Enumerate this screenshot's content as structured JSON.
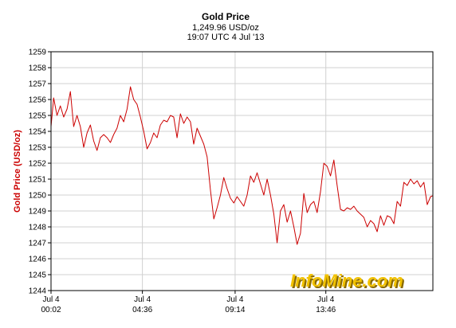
{
  "chart_data": {
    "type": "line",
    "title": "Gold Price",
    "subtitle_price": "1,249.96 USD/oz",
    "subtitle_time": "19:07 UTC 4 Jul '13",
    "ylabel": "Gold Price (USD/oz)",
    "xlabel": "",
    "ylim": [
      1244,
      1259
    ],
    "yticks": [
      1244,
      1245,
      1246,
      1247,
      1248,
      1249,
      1250,
      1251,
      1252,
      1253,
      1254,
      1255,
      1256,
      1257,
      1258,
      1259
    ],
    "xtick_labels": [
      {
        "line1": "Jul 4",
        "line2": "00:02",
        "minutes": 2
      },
      {
        "line1": "Jul 4",
        "line2": "04:36",
        "minutes": 276
      },
      {
        "line1": "Jul 4",
        "line2": "09:14",
        "minutes": 554
      },
      {
        "line1": "Jul 4",
        "line2": "13:46",
        "minutes": 826
      }
    ],
    "xlim_minutes": [
      2,
      1147
    ],
    "grid": true,
    "line_color": "#cc0000",
    "series": [
      {
        "x": [
          2,
          10,
          20,
          30,
          40,
          50,
          60,
          70,
          80,
          90,
          100,
          110,
          120,
          130,
          140,
          150,
          160,
          170,
          180,
          190,
          200,
          210,
          220,
          230,
          240,
          250,
          260,
          270,
          280,
          290,
          300,
          310,
          320,
          330,
          340,
          350,
          360,
          370,
          380,
          390,
          400,
          410,
          420,
          430,
          440,
          450,
          460,
          470,
          480,
          490,
          500,
          510,
          520,
          530,
          540,
          550,
          560,
          570,
          580,
          590,
          600,
          610,
          620,
          630,
          640,
          650,
          660,
          670,
          680,
          690,
          700,
          710,
          720,
          730,
          740,
          750,
          760,
          770,
          780,
          790,
          800,
          810,
          820,
          830,
          840,
          850,
          860,
          870,
          880,
          890,
          900,
          910,
          920,
          930,
          940,
          950,
          960,
          970,
          980,
          990,
          1000,
          1010,
          1020,
          1030,
          1040,
          1050,
          1060,
          1070,
          1080,
          1090,
          1100,
          1110,
          1120,
          1130,
          1140,
          1147
        ],
        "y": [
          1254.3,
          1256.1,
          1255.0,
          1255.6,
          1254.9,
          1255.4,
          1256.5,
          1254.3,
          1255.0,
          1254.3,
          1253.0,
          1253.9,
          1254.4,
          1253.4,
          1252.8,
          1253.6,
          1253.8,
          1253.6,
          1253.3,
          1253.8,
          1254.2,
          1255.0,
          1254.6,
          1255.4,
          1256.8,
          1256.0,
          1255.7,
          1254.9,
          1254.0,
          1252.9,
          1253.3,
          1253.9,
          1253.6,
          1254.4,
          1254.7,
          1254.6,
          1255.0,
          1254.9,
          1253.6,
          1255.1,
          1254.5,
          1254.9,
          1254.6,
          1253.2,
          1254.2,
          1253.7,
          1253.2,
          1252.4,
          1250.3,
          1248.5,
          1249.2,
          1250.0,
          1251.1,
          1250.4,
          1249.8,
          1249.5,
          1249.9,
          1249.6,
          1249.3,
          1250.0,
          1251.2,
          1250.8,
          1251.4,
          1250.7,
          1250.0,
          1251.0,
          1250.0,
          1248.8,
          1247.0,
          1249.0,
          1249.4,
          1248.3,
          1249.0,
          1248.0,
          1246.9,
          1247.6,
          1250.1,
          1248.9,
          1249.4,
          1249.6,
          1248.9,
          1250.2,
          1252.0,
          1251.8,
          1251.2,
          1252.2,
          1250.6,
          1249.1,
          1249.0,
          1249.2,
          1249.1,
          1249.3,
          1249.0,
          1248.8,
          1248.6,
          1248.0,
          1248.4,
          1248.2,
          1247.7,
          1248.7,
          1248.1,
          1248.7,
          1248.6,
          1248.2,
          1249.6,
          1249.3,
          1250.8,
          1250.6,
          1251.0,
          1250.7,
          1250.9,
          1250.5,
          1250.8,
          1249.4,
          1249.9,
          1249.96
        ]
      }
    ]
  },
  "watermark": "InfoMine.com"
}
